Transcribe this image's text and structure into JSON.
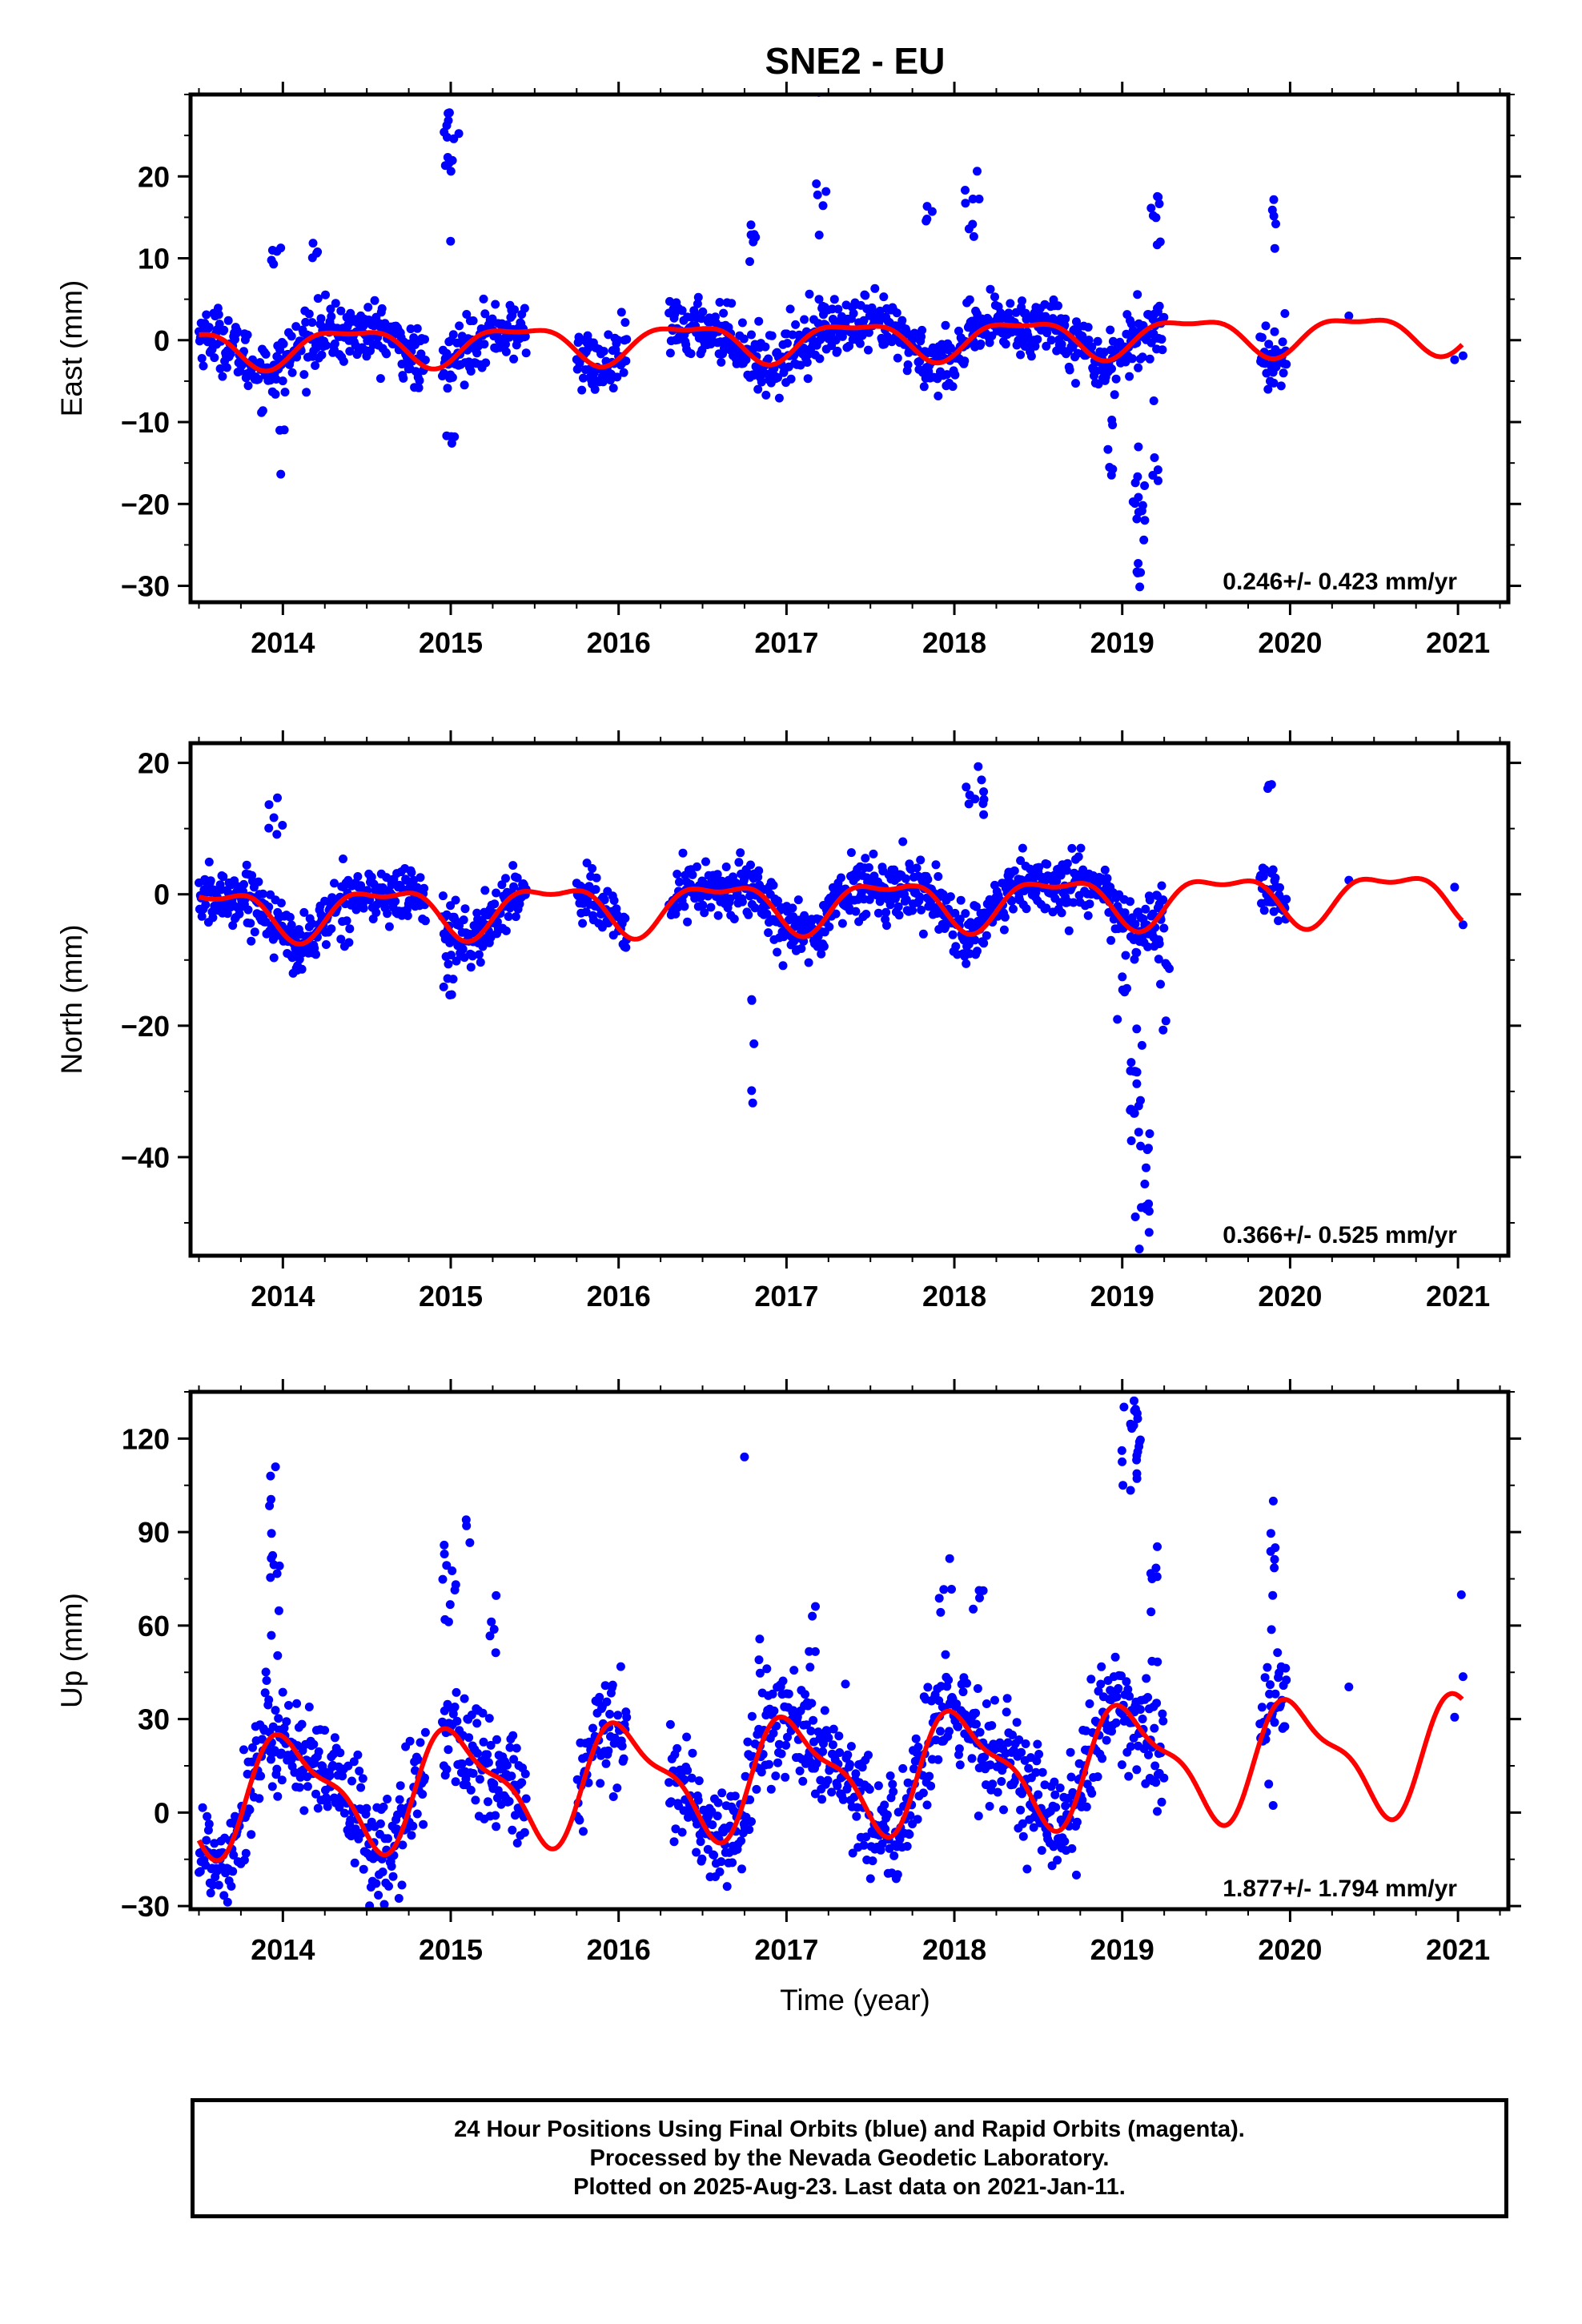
{
  "title": "SNE2 - EU",
  "x_axis_label": "Time (year)",
  "footer": {
    "line1": "24 Hour Positions Using Final Orbits (blue) and Rapid Orbits (magenta).",
    "line2": "Processed by the Nevada Geodetic Laboratory.",
    "line3": "Plotted on 2025-Aug-23. Last data on 2021-Jan-11."
  },
  "colors": {
    "data_points": "#0000ff",
    "model_curve": "#ff0000",
    "frame": "#000000"
  },
  "chart_data": [
    {
      "type": "scatter",
      "name": "East",
      "ylabel": "East (mm)",
      "xlim": [
        2013.45,
        2021.3
      ],
      "ylim": [
        -32,
        30
      ],
      "yticks": [
        -30,
        -20,
        -10,
        0,
        10,
        20
      ],
      "xticks": [
        2014,
        2015,
        2016,
        2017,
        2018,
        2019,
        2020,
        2021
      ],
      "rate_text": "0.246+/- 0.423 mm/yr",
      "model": {
        "mean": 0.0,
        "trend_per_year": 0.25,
        "annual_amp": 2.2,
        "annual_phase_year": 2014.4,
        "semiannual_amp": 0.8,
        "semiannual_phase_year": 2014.15
      },
      "noise": 1.8,
      "outlier_bursts": [
        {
          "x": 2015.0,
          "y": 24,
          "n": 14,
          "spread": 4,
          "width": 0.05
        },
        {
          "x": 2015.0,
          "y": -12,
          "n": 4,
          "spread": 2,
          "width": 0.03
        },
        {
          "x": 2014.0,
          "y": -15,
          "n": 3,
          "spread": 3,
          "width": 0.02
        },
        {
          "x": 2013.98,
          "y": 10,
          "n": 5,
          "spread": 2,
          "width": 0.05
        },
        {
          "x": 2014.2,
          "y": 11,
          "n": 4,
          "spread": 2,
          "width": 0.03
        },
        {
          "x": 2016.8,
          "y": 15,
          "n": 6,
          "spread": 3,
          "width": 0.02
        },
        {
          "x": 2017.2,
          "y": 16,
          "n": 6,
          "spread": 3,
          "width": 0.05
        },
        {
          "x": 2017.85,
          "y": 16,
          "n": 4,
          "spread": 3,
          "width": 0.02
        },
        {
          "x": 2018.1,
          "y": 16,
          "n": 8,
          "spread": 3,
          "width": 0.05
        },
        {
          "x": 2018.93,
          "y": -13,
          "n": 6,
          "spread": 3,
          "width": 0.02
        },
        {
          "x": 2019.1,
          "y": -22,
          "n": 16,
          "spread": 5,
          "width": 0.04
        },
        {
          "x": 2019.1,
          "y": -29,
          "n": 2,
          "spread": 1.5,
          "width": 0.01
        },
        {
          "x": 2019.2,
          "y": 15,
          "n": 8,
          "spread": 3,
          "width": 0.03
        },
        {
          "x": 2019.2,
          "y": -14,
          "n": 5,
          "spread": 3,
          "width": 0.02
        },
        {
          "x": 2019.9,
          "y": 14,
          "n": 5,
          "spread": 3,
          "width": 0.02
        }
      ]
    },
    {
      "type": "scatter",
      "name": "North",
      "ylabel": "North (mm)",
      "xlim": [
        2013.45,
        2021.3
      ],
      "ylim": [
        -55,
        23
      ],
      "yticks": [
        -40,
        -20,
        0,
        20
      ],
      "xticks": [
        2014,
        2015,
        2016,
        2017,
        2018,
        2019,
        2020,
        2021
      ],
      "rate_text": "0.366+/- 0.525 mm/yr",
      "model": {
        "mean": -1.5,
        "trend_per_year": 0.37,
        "annual_amp": 3.5,
        "annual_phase_year": 2014.6,
        "semiannual_amp": 1.5,
        "semiannual_phase_year": 2014.35
      },
      "noise": 2.2,
      "outlier_bursts": [
        {
          "x": 2013.95,
          "y": 10,
          "n": 6,
          "spread": 3,
          "width": 0.06
        },
        {
          "x": 2014.1,
          "y": -9,
          "n": 5,
          "spread": 2,
          "width": 0.05
        },
        {
          "x": 2015.0,
          "y": -14,
          "n": 6,
          "spread": 3,
          "width": 0.05
        },
        {
          "x": 2016.8,
          "y": -20,
          "n": 3,
          "spread": 3,
          "width": 0.01
        },
        {
          "x": 2016.8,
          "y": -32,
          "n": 2,
          "spread": 1,
          "width": 0.01
        },
        {
          "x": 2018.12,
          "y": 14,
          "n": 10,
          "spread": 4,
          "width": 0.06
        },
        {
          "x": 2019.0,
          "y": -15,
          "n": 5,
          "spread": 3,
          "width": 0.03
        },
        {
          "x": 2019.08,
          "y": -32,
          "n": 20,
          "spread": 8,
          "width": 0.04
        },
        {
          "x": 2019.15,
          "y": -46,
          "n": 10,
          "spread": 4,
          "width": 0.02
        },
        {
          "x": 2019.25,
          "y": -15,
          "n": 8,
          "spread": 5,
          "width": 0.04
        },
        {
          "x": 2019.87,
          "y": 17,
          "n": 3,
          "spread": 2,
          "width": 0.02
        }
      ]
    },
    {
      "type": "scatter",
      "name": "Up",
      "ylabel": "Up (mm)",
      "xlim": [
        2013.45,
        2021.3
      ],
      "ylim": [
        -31,
        135
      ],
      "yticks": [
        -30,
        0,
        30,
        60,
        90,
        120
      ],
      "xticks": [
        2014,
        2015,
        2016,
        2017,
        2018,
        2019,
        2020,
        2021
      ],
      "rate_text": "1.877+/- 1.794 mm/yr",
      "model": {
        "mean": 12.0,
        "trend_per_year": 1.88,
        "annual_amp": 17.0,
        "annual_phase_year": 2015.05,
        "semiannual_amp": 6.0,
        "semiannual_phase_year": 2014.9
      },
      "noise": 9.0,
      "outlier_bursts": [
        {
          "x": 2013.95,
          "y": 85,
          "n": 14,
          "spread": 12,
          "width": 0.03
        },
        {
          "x": 2015.0,
          "y": 70,
          "n": 10,
          "spread": 12,
          "width": 0.06
        },
        {
          "x": 2015.1,
          "y": 88,
          "n": 3,
          "spread": 3,
          "width": 0.02
        },
        {
          "x": 2015.25,
          "y": 55,
          "n": 5,
          "spread": 8,
          "width": 0.03
        },
        {
          "x": 2016.75,
          "y": 113,
          "n": 1,
          "spread": 0.5,
          "width": 0.0
        },
        {
          "x": 2016.85,
          "y": 50,
          "n": 3,
          "spread": 6,
          "width": 0.02
        },
        {
          "x": 2017.15,
          "y": 55,
          "n": 5,
          "spread": 6,
          "width": 0.03
        },
        {
          "x": 2017.95,
          "y": 70,
          "n": 5,
          "spread": 6,
          "width": 0.04
        },
        {
          "x": 2018.15,
          "y": 72,
          "n": 4,
          "spread": 6,
          "width": 0.04
        },
        {
          "x": 2019.05,
          "y": 120,
          "n": 24,
          "spread": 10,
          "width": 0.06
        },
        {
          "x": 2019.2,
          "y": 75,
          "n": 8,
          "spread": 12,
          "width": 0.03
        },
        {
          "x": 2019.9,
          "y": 80,
          "n": 8,
          "spread": 14,
          "width": 0.02
        },
        {
          "x": 2021.02,
          "y": 70,
          "n": 1,
          "spread": 0.5,
          "width": 0.0
        }
      ]
    }
  ]
}
